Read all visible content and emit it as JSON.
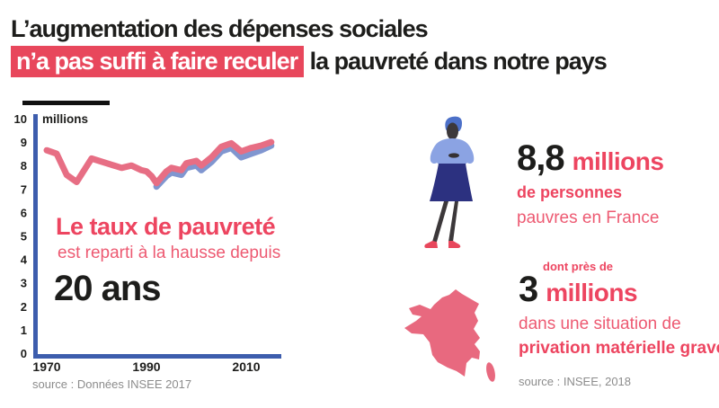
{
  "title": {
    "line1": "L’augmentation des dépenses sociales",
    "line2_highlighted": "n’a pas suffi à faire reculer",
    "line2_rest": "la pauvreté dans notre pays"
  },
  "colors": {
    "accent_red": "#e8475c",
    "pink_text_bold": "#ed4560",
    "pink_text_regular": "#ed5a72",
    "pink_line": "#e76e84",
    "blue_line": "#8096d0",
    "axis_blue": "#3d5dad",
    "ink": "#1d1d1b",
    "muted_gray": "#8c8c8c",
    "map_pink": "#e8697f"
  },
  "chart": {
    "unit_label": "millions",
    "annotation_title": "Le taux de pauvreté",
    "annotation_sub": "est reparti à la hausse depuis",
    "annotation_big": "20 ans",
    "source": "source : Données INSEE 2017"
  },
  "chart_data": {
    "type": "line",
    "title": "Le taux de pauvreté est reparti à la hausse depuis 20 ans",
    "ylabel": "millions",
    "ylim": [
      0,
      10
    ],
    "xlim": [
      1968,
      2016
    ],
    "yticks": [
      0,
      1,
      2,
      3,
      4,
      5,
      6,
      7,
      8,
      9,
      10
    ],
    "xticks": [
      1970,
      1990,
      2010
    ],
    "grid": false,
    "legend": false,
    "series": [
      {
        "name": "personnes pauvres — courbe rose",
        "color": "#e76e84",
        "x": [
          1970,
          1972,
          1974,
          1976,
          1979,
          1982,
          1985,
          1987,
          1989,
          1990,
          1991,
          1992,
          1994,
          1995,
          1997,
          1998,
          2000,
          2001,
          2003,
          2005,
          2007,
          2009,
          2011,
          2013,
          2015
        ],
        "values": [
          8.65,
          8.5,
          7.6,
          7.3,
          8.3,
          8.1,
          7.9,
          8.0,
          7.8,
          7.75,
          7.55,
          7.25,
          7.75,
          7.9,
          7.8,
          8.1,
          8.2,
          8.0,
          8.35,
          8.8,
          8.95,
          8.6,
          8.75,
          8.85,
          9.0
        ]
      },
      {
        "name": "personnes pauvres — courbe bleue",
        "color": "#8096d0",
        "x": [
          1992,
          1994,
          1995,
          1997,
          1998,
          2000,
          2001,
          2003,
          2005,
          2007,
          2009,
          2011,
          2013,
          2015
        ],
        "values": [
          7.1,
          7.55,
          7.7,
          7.6,
          7.9,
          8.0,
          7.8,
          8.15,
          8.6,
          8.75,
          8.35,
          8.5,
          8.65,
          8.85
        ]
      }
    ]
  },
  "figure1": {
    "number": "8,8",
    "unit": "millions",
    "line1": "de personnes",
    "line2": "pauvres en France"
  },
  "figure2": {
    "pre": "dont près de",
    "number": "3",
    "unit": "millions",
    "line1": "dans une situation de",
    "line2": "privation matérielle grave.",
    "source": "source : INSEE, 2018"
  }
}
